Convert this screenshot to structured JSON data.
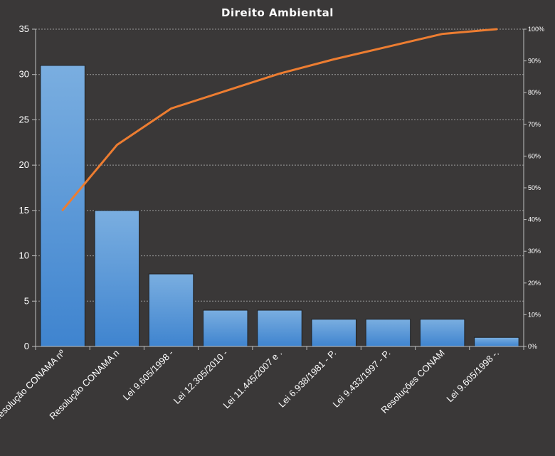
{
  "chart_data": {
    "type": "bar",
    "title": "Direito  Ambiental",
    "categories": [
      "Resolução CONAMA nº",
      "Resolução CONAMA n",
      "Lei 9.605/1998 -",
      "Lei 12.305/2010 -",
      "Lei 11.445/2007 e .",
      "Lei 6.938/1981 - P.",
      "Lei 9.433/1997 - P.",
      "Resoluções CONAM",
      "Lei 9.605/1998 -."
    ],
    "series": [
      {
        "values": [
          31,
          15,
          8,
          4,
          4,
          3,
          3,
          3,
          1
        ]
      },
      {
        "values": [
          43,
          63.5,
          75,
          80.5,
          86,
          90.5,
          94.5,
          98.5,
          100
        ],
        "axis": "secondary"
      }
    ],
    "ylim": [
      0,
      35
    ],
    "yticks": [
      "0",
      "5",
      "10",
      "15",
      "20",
      "25",
      "30",
      "35"
    ],
    "y2lim": [
      0,
      100
    ],
    "y2ticks": [
      "0%",
      "10%",
      "20%",
      "30%",
      "40%",
      "50%",
      "60%",
      "70%",
      "80%",
      "90%",
      "100%"
    ],
    "grid": true,
    "colors": {
      "bar": "#4a90d9",
      "bar_top": "#7aaee0",
      "line": "#ed7d31",
      "background": "#3a3838"
    }
  }
}
